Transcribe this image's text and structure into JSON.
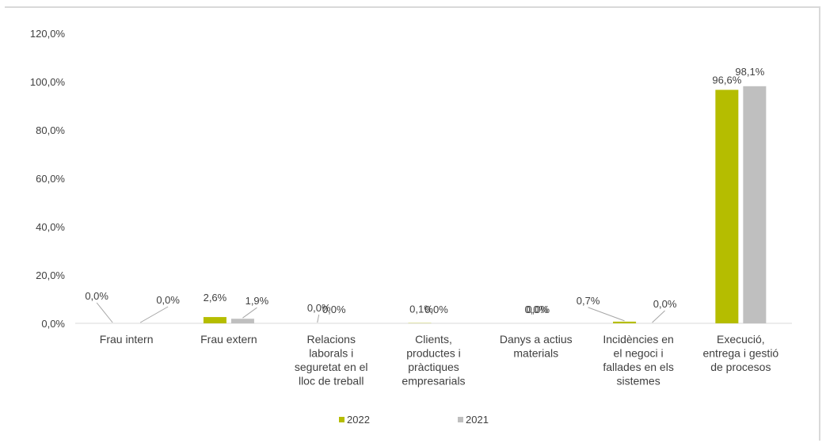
{
  "chart_data": {
    "type": "bar",
    "categories": [
      [
        "Frau intern"
      ],
      [
        "Frau extern"
      ],
      [
        "Relacions",
        "laborals i",
        "seguretat en el",
        "lloc de treball"
      ],
      [
        "Clients,",
        "productes i",
        "pràctiques",
        "empresarials"
      ],
      [
        "Danys a actius",
        "materials"
      ],
      [
        "Incidències en",
        "el negoci i",
        "fallades en els",
        "sistemes"
      ],
      [
        "Execució,",
        "entrega i gestió",
        "de procesos"
      ]
    ],
    "series": [
      {
        "name": "2022",
        "color": "#b5bd00",
        "values": [
          0.0,
          2.6,
          0.0,
          0.1,
          0.0,
          0.7,
          96.6
        ],
        "labels": [
          "0,0%",
          "2,6%",
          "0,0%",
          "0,1%",
          "0,0%",
          "0,7%",
          "96,6%"
        ]
      },
      {
        "name": "2021",
        "color": "#bfbfbf",
        "values": [
          0.0,
          1.9,
          0.0,
          0.0,
          0.0,
          0.0,
          98.1
        ],
        "labels": [
          "0,0%",
          "1,9%",
          "0,0%",
          "0,0%",
          "0,0%",
          "0,0%",
          "98,1%"
        ]
      }
    ],
    "ylim": [
      0,
      120
    ],
    "yticks": [
      "0,0%",
      "20,0%",
      "40,0%",
      "60,0%",
      "80,0%",
      "100,0%",
      "120,0%"
    ],
    "legend": "bottom",
    "grid": false
  }
}
